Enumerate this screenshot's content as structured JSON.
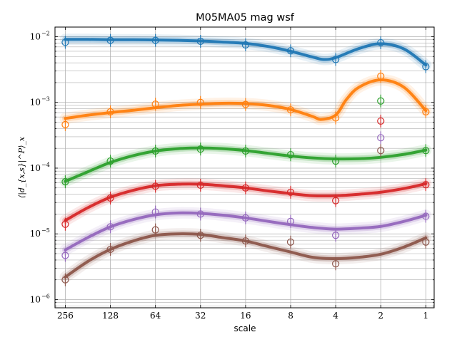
{
  "chart_data": {
    "type": "line",
    "title": "M05MA05 mag wsf",
    "xlabel": "scale",
    "ylabel": "⟨|d_{x,s}|^P⟩_x",
    "x_scale": "log2-reversed",
    "y_scale": "log",
    "xlim": [
      300,
      0.88
    ],
    "ylim": [
      7.5e-07,
      0.014
    ],
    "grid": true,
    "x_ticks": [
      256,
      128,
      64,
      32,
      16,
      8,
      4,
      2,
      1
    ],
    "x_tick_labels": [
      "256",
      "128",
      "64",
      "32",
      "16",
      "8",
      "4",
      "2",
      "1"
    ],
    "y_ticks": [
      1e-06,
      1e-05,
      0.0001,
      0.001,
      0.01
    ],
    "y_tick_labels": [
      "10",
      "10",
      "10",
      "10",
      "10"
    ],
    "y_tick_exponents": [
      "−6",
      "−5",
      "−4",
      "−3",
      "−2"
    ],
    "series": [
      {
        "color": "#1f77b4",
        "points_x": [
          256,
          128,
          64,
          32,
          16,
          8,
          4,
          2,
          1
        ],
        "points_y": [
          0.0082,
          0.0088,
          0.0088,
          0.0085,
          0.0075,
          0.0061,
          0.0045,
          0.0081,
          0.0035
        ],
        "curve_x": [
          256,
          181,
          128,
          90,
          64,
          45,
          32,
          23,
          16,
          11.3,
          8,
          5.7,
          4.8,
          4,
          2.8,
          2,
          1.4,
          1
        ],
        "curve_y": [
          0.0091,
          0.0091,
          0.009,
          0.009,
          0.0089,
          0.0088,
          0.0086,
          0.0083,
          0.0079,
          0.0071,
          0.006,
          0.0049,
          0.0045,
          0.0048,
          0.0066,
          0.0078,
          0.0065,
          0.0037
        ]
      },
      {
        "color": "#ff7f0e",
        "points_x": [
          256,
          128,
          64,
          32,
          16,
          8,
          4,
          2,
          1
        ],
        "points_y": [
          0.00046,
          0.00072,
          0.00094,
          0.001,
          0.00093,
          0.00077,
          0.00058,
          0.0025,
          0.00072
        ],
        "curve_x": [
          256,
          181,
          128,
          90,
          64,
          45,
          32,
          23,
          16,
          11.3,
          8,
          5.7,
          5,
          4,
          3.4,
          2.8,
          2,
          1.4,
          1
        ],
        "curve_y": [
          0.00057,
          0.00064,
          0.0007,
          0.00076,
          0.00083,
          0.0009,
          0.00094,
          0.00097,
          0.00096,
          0.0009,
          0.00078,
          0.00061,
          0.00055,
          0.00064,
          0.0011,
          0.0017,
          0.0022,
          0.0017,
          0.00075
        ]
      },
      {
        "color": "#2ca02c",
        "points_x": [
          256,
          128,
          64,
          32,
          16,
          8,
          4,
          2,
          1
        ],
        "points_y": [
          6.2e-05,
          0.000128,
          0.000182,
          0.000195,
          0.000182,
          0.00016,
          0.000128,
          0.00105,
          0.000185
        ],
        "curve_x": [
          256,
          181,
          128,
          90,
          64,
          45,
          32,
          23,
          16,
          11.3,
          8,
          5.7,
          4,
          2.8,
          2,
          1.4,
          1
        ],
        "curve_y": [
          6.3e-05,
          8.8e-05,
          0.000122,
          0.000155,
          0.000182,
          0.000198,
          0.000203,
          0.000198,
          0.000185,
          0.000168,
          0.000153,
          0.000143,
          0.000138,
          0.000139,
          0.000146,
          0.000162,
          0.000188
        ]
      },
      {
        "color": "#d62728",
        "points_x": [
          256,
          128,
          64,
          32,
          16,
          8,
          4,
          2,
          1
        ],
        "points_y": [
          1.4e-05,
          3.5e-05,
          5.3e-05,
          5.5e-05,
          5e-05,
          4.3e-05,
          3.2e-05,
          0.00052,
          5.6e-05
        ],
        "curve_x": [
          256,
          181,
          128,
          90,
          64,
          45,
          32,
          23,
          16,
          11.3,
          8,
          5.7,
          4,
          2.8,
          2,
          1.4,
          1
        ],
        "curve_y": [
          1.6e-05,
          2.5e-05,
          3.6e-05,
          4.6e-05,
          5.4e-05,
          5.7e-05,
          5.7e-05,
          5.4e-05,
          5e-05,
          4.5e-05,
          4.1e-05,
          3.8e-05,
          3.8e-05,
          4e-05,
          4.3e-05,
          4.9e-05,
          5.8e-05
        ]
      },
      {
        "color": "#9467bd",
        "points_x": [
          256,
          128,
          64,
          32,
          16,
          8,
          4,
          2,
          1
        ],
        "points_y": [
          4.7e-06,
          1.28e-05,
          2.15e-05,
          2e-05,
          1.75e-05,
          1.55e-05,
          9.5e-06,
          0.00029,
          1.85e-05
        ],
        "curve_x": [
          256,
          181,
          128,
          90,
          64,
          45,
          32,
          23,
          16,
          11.3,
          8,
          5.7,
          4,
          2.8,
          2,
          1.4,
          1
        ],
        "curve_y": [
          5.7e-06,
          8.8e-06,
          1.28e-05,
          1.65e-05,
          1.95e-05,
          2.08e-05,
          2.05e-05,
          1.93e-05,
          1.75e-05,
          1.55e-05,
          1.38e-05,
          1.25e-05,
          1.18e-05,
          1.22e-05,
          1.3e-05,
          1.55e-05,
          1.92e-05
        ]
      },
      {
        "color": "#8c564b",
        "points_x": [
          256,
          128,
          64,
          32,
          16,
          8,
          4,
          2,
          1
        ],
        "points_y": [
          2e-06,
          5.8e-06,
          1.15e-05,
          9.5e-06,
          7.8e-06,
          7.5e-06,
          3.5e-06,
          0.000185,
          7.5e-06
        ],
        "curve_x": [
          256,
          181,
          128,
          90,
          64,
          45,
          32,
          23,
          16,
          11.3,
          8,
          5.7,
          4,
          2.8,
          2,
          1.4,
          1
        ],
        "curve_y": [
          2.2e-06,
          3.8e-06,
          5.8e-06,
          7.8e-06,
          9.5e-06,
          1e-05,
          9.8e-06,
          8.8e-06,
          7.8e-06,
          6.4e-06,
          5.3e-06,
          4.4e-06,
          4.2e-06,
          4.4e-06,
          4.9e-06,
          6.3e-06,
          8.7e-06
        ]
      }
    ]
  }
}
